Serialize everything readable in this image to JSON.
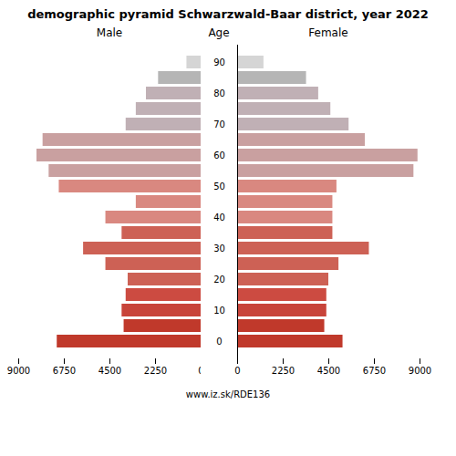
{
  "chart_data": {
    "type": "bar",
    "orientation": "horizontal",
    "title": "demographic pyramid Schwarzwald-Baar district, year 2022",
    "ylabel": "Age",
    "annotation": "www.iz.sk/RDE136",
    "categories": [
      "0",
      null,
      "10",
      null,
      "20",
      null,
      "30",
      null,
      "40",
      null,
      "50",
      null,
      "60",
      null,
      "70",
      null,
      "80",
      null,
      "90"
    ],
    "series": [
      {
        "name": "Male",
        "values": [
          7100,
          3800,
          3900,
          3700,
          3600,
          4700,
          5800,
          3900,
          4700,
          3200,
          7000,
          7500,
          8100,
          7800,
          3700,
          3200,
          2700,
          2100,
          700
        ]
      },
      {
        "name": "Female",
        "values": [
          5200,
          4300,
          4400,
          4400,
          4500,
          5000,
          6500,
          4700,
          4700,
          4700,
          4900,
          8700,
          8900,
          6300,
          5500,
          4600,
          4000,
          3400,
          1300
        ]
      }
    ],
    "colors": [
      "#c0392b",
      "#c0392b",
      "#c8443a",
      "#cc4b41",
      "#cd6155",
      "#cd6155",
      "#cd6155",
      "#cd6155",
      "#d98880",
      "#d98880",
      "#d98880",
      "#c9a0a0",
      "#c9a0a0",
      "#c9a0a0",
      "#c0b0b5",
      "#c0b0b5",
      "#c0b0b5",
      "#b5b5b5",
      "#d5d5d5"
    ],
    "xlim": [
      0,
      9000
    ],
    "xticks": [
      0,
      2250,
      4500,
      6750,
      9000
    ]
  }
}
